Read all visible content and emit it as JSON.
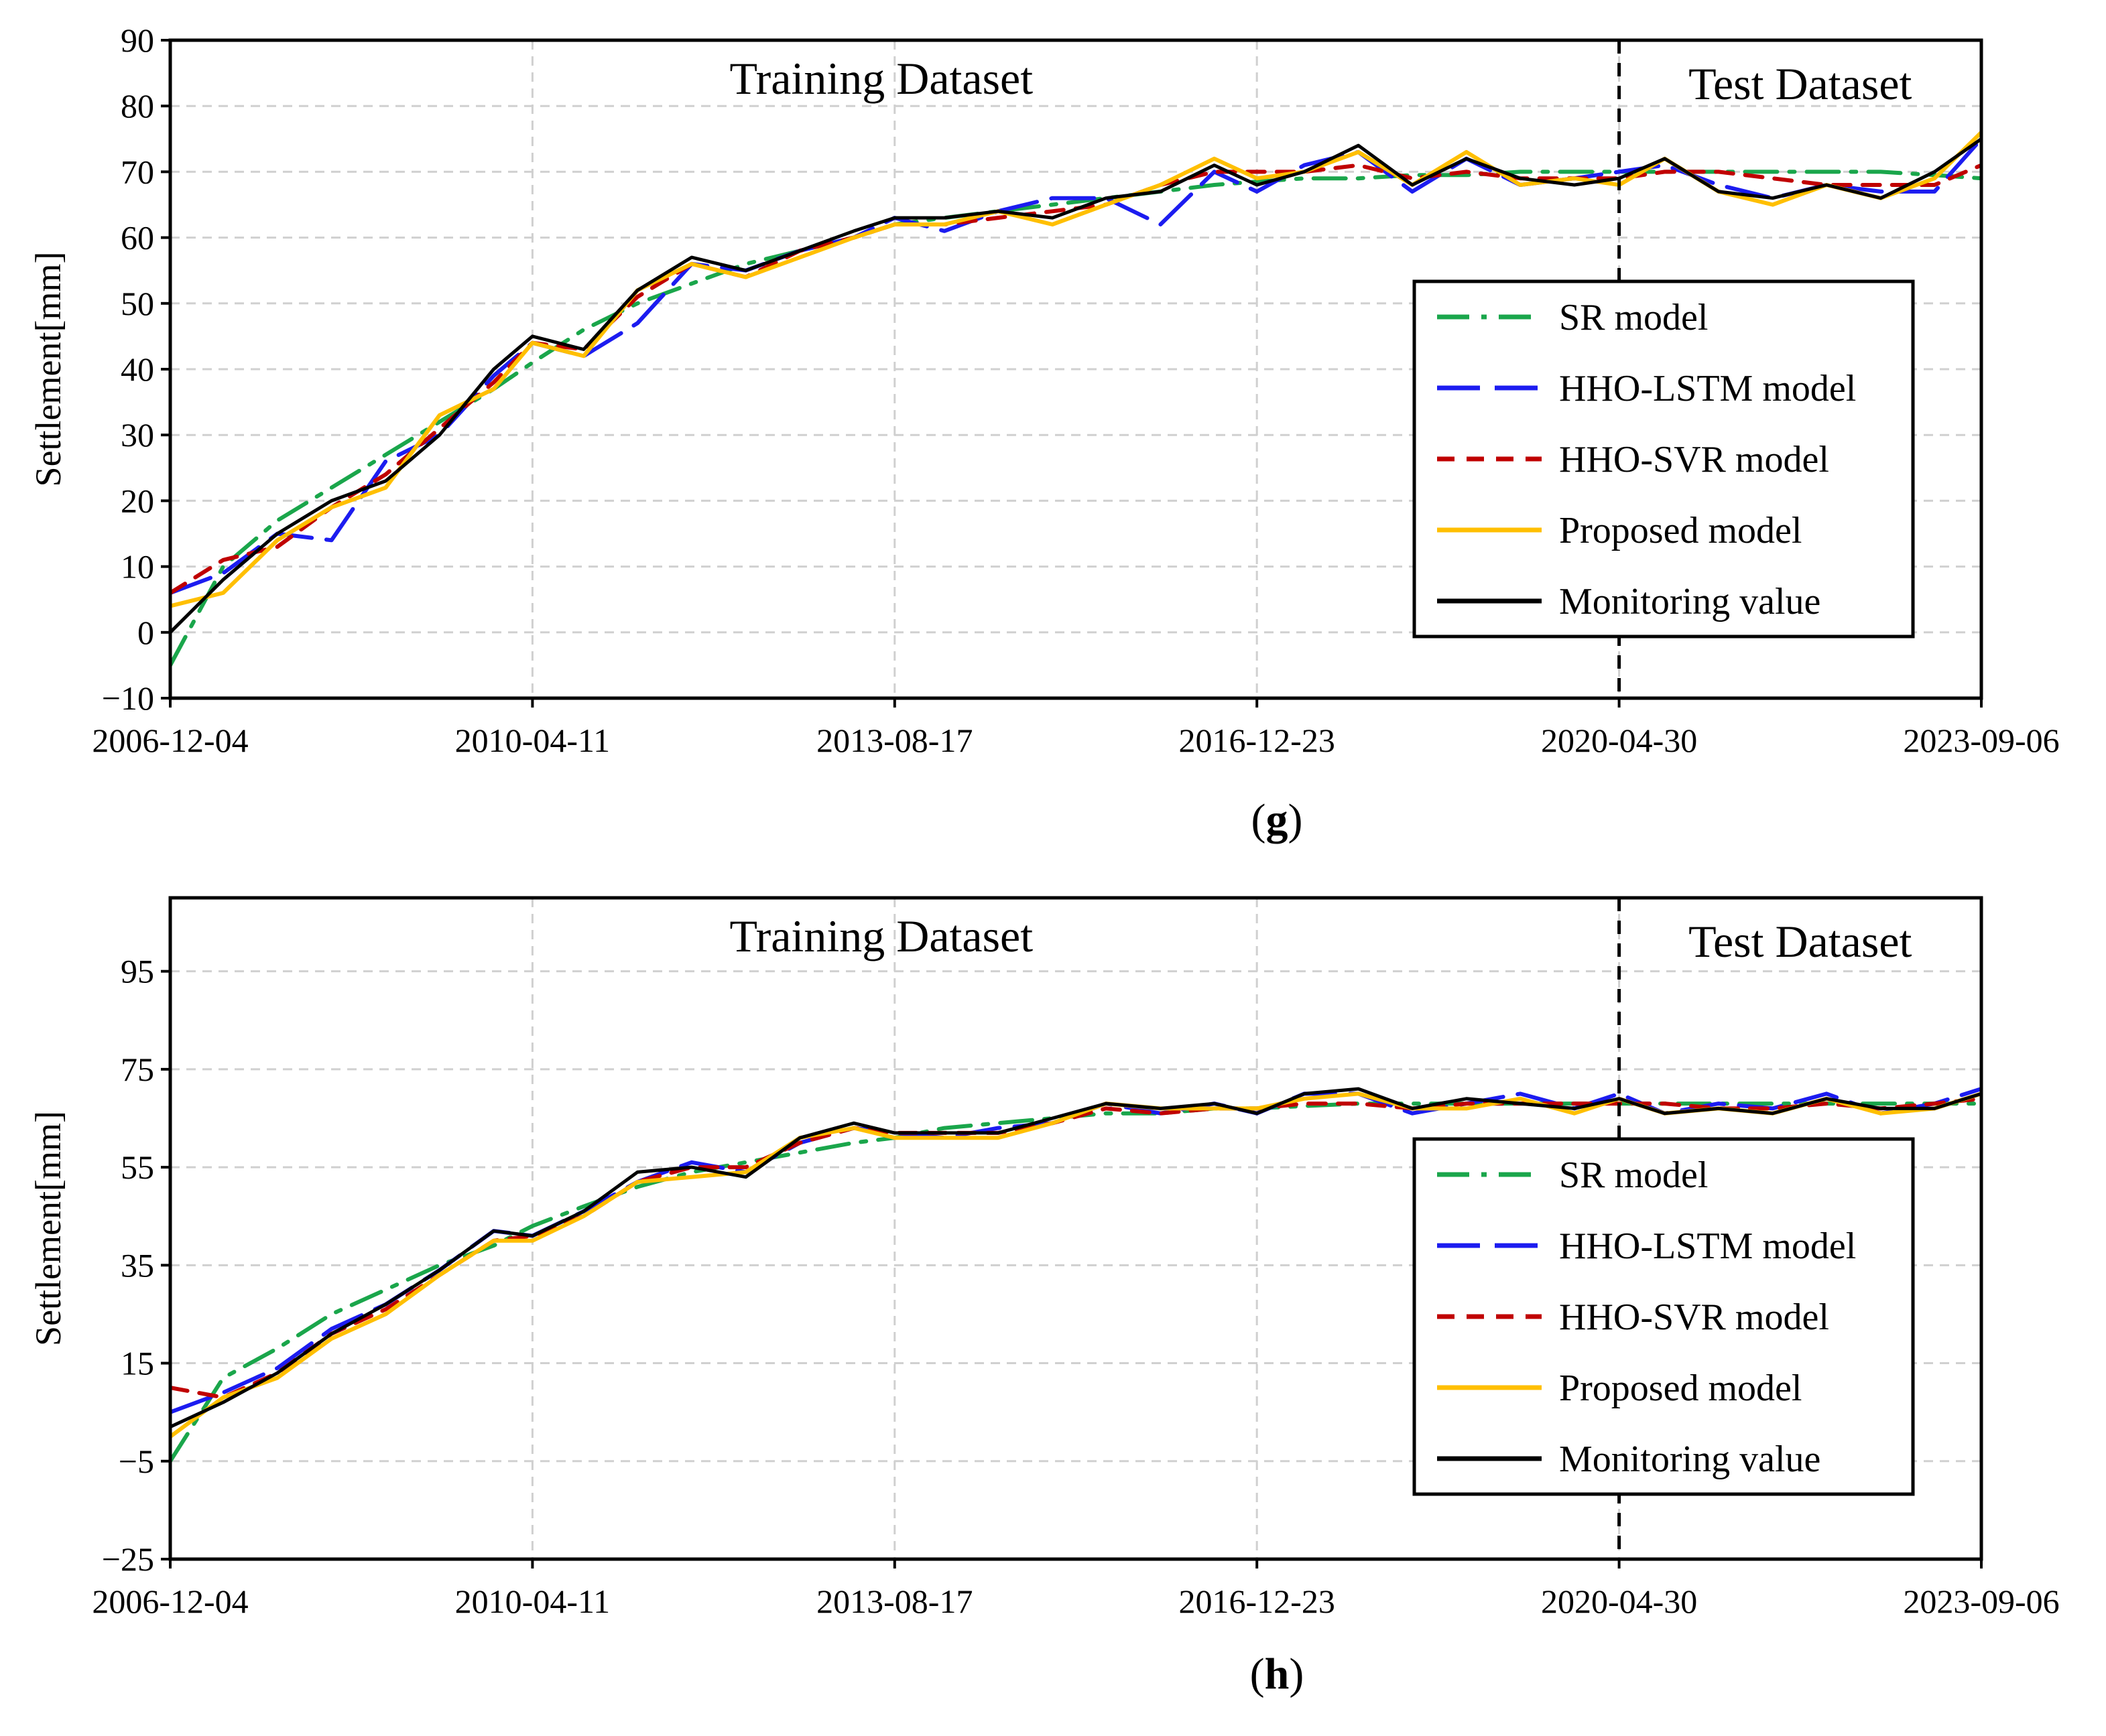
{
  "chart_data": [
    {
      "type": "line",
      "panel": "(g)",
      "panel_letter": "g",
      "ylabel": "Settlement[mm]",
      "xlabel": "",
      "ylim": [
        -10,
        90
      ],
      "yticks": [
        -10,
        0,
        10,
        20,
        30,
        40,
        50,
        60,
        70,
        80,
        90
      ],
      "ytick_labels": [
        "−10",
        "0",
        "10",
        "20",
        "30",
        "40",
        "50",
        "60",
        "70",
        "80",
        "90"
      ],
      "x_range": [
        "2006-12-04",
        "2023-09-06"
      ],
      "xticks": [
        "2006-12-04",
        "2010-04-11",
        "2013-08-17",
        "2016-12-23",
        "2020-04-30",
        "2023-09-06"
      ],
      "split_date": "2020-04-30",
      "region_labels": [
        "Training Dataset",
        "Test Dataset"
      ],
      "grid": true,
      "legend_placement": "right, lower-middle",
      "x_dates": [
        "2006-12-04",
        "2007-06-01",
        "2007-12-01",
        "2008-06-01",
        "2008-12-01",
        "2009-06-01",
        "2009-12-01",
        "2010-04-11",
        "2010-10-01",
        "2011-04-01",
        "2011-10-01",
        "2012-04-01",
        "2012-10-01",
        "2013-04-01",
        "2013-08-17",
        "2014-02-01",
        "2014-08-01",
        "2015-02-01",
        "2015-08-01",
        "2016-02-01",
        "2016-08-01",
        "2016-12-23",
        "2017-06-01",
        "2017-12-01",
        "2018-06-01",
        "2018-12-01",
        "2019-06-01",
        "2019-12-01",
        "2020-04-30",
        "2020-10-01",
        "2021-04-01",
        "2021-10-01",
        "2022-04-01",
        "2022-10-01",
        "2023-04-01",
        "2023-09-06"
      ],
      "series": [
        {
          "name": "SR model",
          "color": "#1aa64b",
          "style": "dashdot",
          "values": [
            -5,
            10,
            17,
            22,
            27,
            32,
            37,
            41,
            46,
            50,
            53,
            56,
            58,
            60,
            62,
            63,
            64,
            65,
            66,
            67,
            68,
            68.5,
            69,
            69,
            69.5,
            69.5,
            70,
            70,
            70,
            70,
            70,
            70,
            70,
            70,
            69.5,
            69
          ]
        },
        {
          "name": "HHO-LSTM model",
          "color": "#1c1cf0",
          "style": "longdash",
          "values": [
            6,
            9,
            15,
            14,
            26,
            30,
            39,
            44,
            42,
            47,
            56,
            55,
            58,
            60,
            63,
            61,
            64,
            66,
            66,
            62,
            70,
            67,
            71,
            73,
            67,
            72,
            68,
            69,
            70,
            71,
            68,
            66,
            68,
            67,
            67,
            75
          ]
        },
        {
          "name": "HHO-SVR model",
          "color": "#c00000",
          "style": "dash",
          "values": [
            6,
            11,
            13,
            19,
            24,
            31,
            38,
            44,
            43,
            51,
            56,
            54,
            58,
            60,
            62,
            62,
            63,
            64,
            65,
            68,
            70,
            70,
            70,
            71,
            69,
            70,
            69,
            69,
            69,
            70,
            70,
            69,
            68,
            68,
            68,
            71
          ]
        },
        {
          "name": "Proposed model",
          "color": "#ffbf00",
          "style": "solid",
          "values": [
            4,
            6,
            14,
            19,
            22,
            33,
            37,
            44,
            42,
            52,
            56,
            54,
            57,
            60,
            62,
            62,
            64,
            62,
            65,
            68,
            72,
            69,
            70,
            73,
            68,
            73,
            68,
            69,
            68,
            72,
            67,
            65,
            68,
            66,
            69,
            76
          ]
        },
        {
          "name": "Monitoring value",
          "color": "#000000",
          "style": "solid",
          "values": [
            0,
            8,
            15,
            20,
            23,
            30,
            40,
            45,
            43,
            52,
            57,
            55,
            58,
            61,
            63,
            63,
            64,
            63,
            66,
            67,
            71,
            68,
            70,
            74,
            68,
            72,
            69,
            68,
            69,
            72,
            67,
            66,
            68,
            66,
            70,
            75
          ]
        }
      ]
    },
    {
      "type": "line",
      "panel": "(h)",
      "panel_letter": "h",
      "ylabel": "Settlement[mm]",
      "xlabel": "",
      "ylim": [
        -25,
        110
      ],
      "yticks": [
        -25,
        -5,
        15,
        35,
        55,
        75,
        95
      ],
      "ytick_labels": [
        "−25",
        "−5",
        "15",
        "35",
        "55",
        "75",
        "95"
      ],
      "x_range": [
        "2006-12-04",
        "2023-09-06"
      ],
      "xticks": [
        "2006-12-04",
        "2010-04-11",
        "2013-08-17",
        "2016-12-23",
        "2020-04-30",
        "2023-09-06"
      ],
      "split_date": "2020-04-30",
      "region_labels": [
        "Training Dataset",
        "Test Dataset"
      ],
      "grid": true,
      "legend_placement": "right, lower-middle",
      "x_dates": [
        "2006-12-04",
        "2007-06-01",
        "2007-12-01",
        "2008-06-01",
        "2008-12-01",
        "2009-06-01",
        "2009-12-01",
        "2010-04-11",
        "2010-10-01",
        "2011-04-01",
        "2011-10-01",
        "2012-04-01",
        "2012-10-01",
        "2013-04-01",
        "2013-08-17",
        "2014-02-01",
        "2014-08-01",
        "2015-02-01",
        "2015-08-01",
        "2016-02-01",
        "2016-08-01",
        "2016-12-23",
        "2017-06-01",
        "2017-12-01",
        "2018-06-01",
        "2018-12-01",
        "2019-06-01",
        "2019-12-01",
        "2020-04-30",
        "2020-10-01",
        "2021-04-01",
        "2021-10-01",
        "2022-04-01",
        "2022-10-01",
        "2023-04-01",
        "2023-09-06"
      ],
      "series": [
        {
          "name": "SR model",
          "color": "#1aa64b",
          "style": "dashdot",
          "values": [
            -5,
            12,
            18,
            25,
            30,
            35,
            39,
            43,
            47,
            51,
            54,
            56,
            58,
            60,
            61,
            63,
            64,
            65,
            66,
            66,
            67,
            67,
            67.5,
            68,
            68,
            68,
            68,
            68,
            68,
            68,
            68,
            68,
            68,
            68,
            68,
            68
          ]
        },
        {
          "name": "HHO-LSTM model",
          "color": "#1c1cf0",
          "style": "longdash",
          "values": [
            5,
            9,
            14,
            22,
            27,
            34,
            42,
            41,
            46,
            52,
            56,
            54,
            60,
            63,
            62,
            61,
            63,
            64,
            68,
            66,
            68,
            66,
            70,
            70,
            66,
            68,
            70,
            67,
            70,
            66,
            68,
            67,
            70,
            66,
            68,
            71
          ]
        },
        {
          "name": "HHO-SVR model",
          "color": "#c00000",
          "style": "dash",
          "values": [
            10,
            8,
            13,
            21,
            26,
            33,
            40,
            41,
            45,
            52,
            55,
            55,
            60,
            63,
            62,
            62,
            62,
            64,
            67,
            66,
            67,
            67,
            68,
            68,
            67,
            68,
            68,
            68,
            68,
            68,
            67,
            67,
            68,
            67,
            68,
            69
          ]
        },
        {
          "name": "Proposed model",
          "color": "#ffbf00",
          "style": "solid",
          "values": [
            0,
            8,
            12,
            20,
            25,
            33,
            40,
            40,
            45,
            52,
            53,
            54,
            61,
            63,
            61,
            61,
            61,
            64,
            68,
            67,
            67,
            67,
            69,
            70,
            67,
            67,
            69,
            66,
            69,
            66,
            67,
            66,
            69,
            66,
            67,
            70
          ]
        },
        {
          "name": "Monitoring value",
          "color": "#000000",
          "style": "solid",
          "values": [
            2,
            7,
            13,
            21,
            27,
            34,
            42,
            41,
            46,
            54,
            55,
            53,
            61,
            64,
            62,
            62,
            62,
            65,
            68,
            67,
            68,
            66,
            70,
            71,
            67,
            69,
            68,
            67,
            69,
            66,
            67,
            66,
            69,
            67,
            67,
            70
          ]
        }
      ]
    }
  ]
}
